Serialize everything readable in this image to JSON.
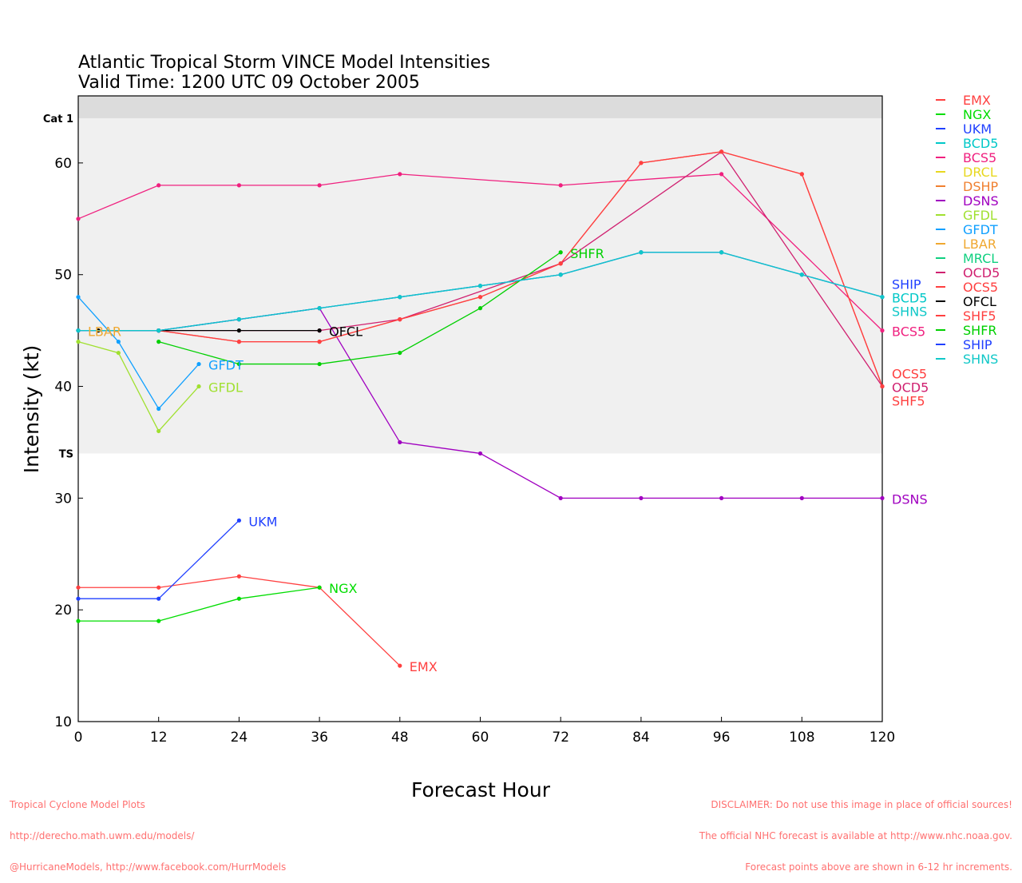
{
  "title_line1": "Atlantic Tropical Storm VINCE Model Intensities",
  "title_line2": "Valid Time: 1200 UTC 09 October 2005",
  "footer_left": [
    "Tropical Cyclone Model Plots",
    "http://derecho.math.uwm.edu/models/",
    "@HurricaneModels, http://www.facebook.com/HurrModels"
  ],
  "footer_right": [
    "DISCLAIMER: Do not use this image in place of official sources!",
    "The official NHC forecast is available at http://www.nhc.noaa.gov.",
    "Forecast points above are shown in 6-12 hr increments."
  ],
  "chart_data": {
    "type": "line",
    "xlabel": "Forecast Hour",
    "ylabel": "Intensity (kt)",
    "xlim": [
      0,
      120
    ],
    "ylim": [
      10,
      66
    ],
    "xticks": [
      0,
      12,
      24,
      36,
      48,
      60,
      72,
      84,
      96,
      108,
      120
    ],
    "yticks": [
      10,
      20,
      30,
      40,
      50,
      60
    ],
    "bands": [
      {
        "label": "TS",
        "from": 34,
        "to": 64,
        "color": "#f0f0f0"
      },
      {
        "label": "Cat 1",
        "from": 64,
        "to": 66,
        "color": "#dcdcdc"
      }
    ],
    "legend_position": "right",
    "series": [
      {
        "name": "EMX",
        "color": "#ff4040",
        "x": [
          0,
          12,
          24,
          36,
          48
        ],
        "y": [
          22,
          22,
          23,
          22,
          15
        ]
      },
      {
        "name": "NGX",
        "color": "#00dd00",
        "x": [
          0,
          12,
          24,
          36
        ],
        "y": [
          19,
          19,
          21,
          22
        ]
      },
      {
        "name": "UKM",
        "color": "#2040ff",
        "x": [
          0,
          12,
          24
        ],
        "y": [
          21,
          21,
          28
        ]
      },
      {
        "name": "BCD5",
        "color": "#00c8c8",
        "x": [
          0,
          12,
          24,
          36,
          48,
          60,
          72,
          84,
          96,
          108,
          120
        ],
        "y": [
          45,
          45,
          46,
          47,
          48,
          49,
          50,
          52,
          52,
          50,
          48
        ]
      },
      {
        "name": "BCS5",
        "color": "#f0207f",
        "x": [
          0,
          12,
          24,
          36,
          48,
          72,
          96,
          120
        ],
        "y": [
          55,
          58,
          58,
          58,
          59,
          58,
          59,
          45
        ]
      },
      {
        "name": "DRCL",
        "color": "#e8d820",
        "x": [],
        "y": []
      },
      {
        "name": "DSHP",
        "color": "#f08030",
        "x": [],
        "y": []
      },
      {
        "name": "DSNS",
        "color": "#a000c0",
        "x": [
          0,
          12,
          24,
          36,
          48,
          60,
          72,
          84,
          96,
          108,
          120
        ],
        "y": [
          45,
          45,
          46,
          47,
          35,
          34,
          30,
          30,
          30,
          30,
          30
        ]
      },
      {
        "name": "GFDL",
        "color": "#a0e030",
        "x": [
          0,
          6,
          12,
          18
        ],
        "y": [
          44,
          43,
          36,
          40
        ]
      },
      {
        "name": "GFDT",
        "color": "#10a0ff",
        "x": [
          0,
          6,
          12,
          18
        ],
        "y": [
          48,
          44,
          38,
          42
        ]
      },
      {
        "name": "LBAR",
        "color": "#f0a830",
        "x": [
          0
        ],
        "y": [
          45
        ]
      },
      {
        "name": "MRCL",
        "color": "#10d080",
        "x": [],
        "y": []
      },
      {
        "name": "OCD5",
        "color": "#d02070",
        "x": [
          12,
          36,
          48,
          72,
          96,
          120
        ],
        "y": [
          45,
          45,
          46,
          51,
          61,
          40
        ]
      },
      {
        "name": "OCS5",
        "color": "#ff4040",
        "x": [
          12,
          24,
          36,
          48,
          60,
          72,
          84,
          96,
          108,
          120
        ],
        "y": [
          45,
          44,
          44,
          46,
          48,
          51,
          60,
          61,
          59,
          40
        ]
      },
      {
        "name": "OFCL",
        "color": "#000000",
        "x": [
          3,
          12,
          24,
          36
        ],
        "y": [
          45,
          45,
          45,
          45
        ]
      },
      {
        "name": "SHF5",
        "color": "#ff4040",
        "x": [
          12,
          24,
          36,
          48,
          60,
          72,
          84,
          96,
          108,
          120
        ],
        "y": [
          45,
          44,
          44,
          46,
          48,
          51,
          60,
          61,
          59,
          40
        ]
      },
      {
        "name": "SHFR",
        "color": "#00d000",
        "x": [
          12,
          24,
          36,
          48,
          60,
          72
        ],
        "y": [
          44,
          42,
          42,
          43,
          47,
          52
        ]
      },
      {
        "name": "SHIP",
        "color": "#2040ff",
        "x": [
          0,
          12,
          24,
          36,
          48,
          60,
          72,
          84,
          96,
          108,
          120
        ],
        "y": [
          45,
          45,
          46,
          47,
          48,
          49,
          50,
          52,
          52,
          50,
          48
        ]
      },
      {
        "name": "SHNS",
        "color": "#10c8c8",
        "x": [
          0,
          12,
          24,
          36,
          48,
          60,
          72,
          84,
          96,
          108,
          120
        ],
        "y": [
          45,
          45,
          46,
          47,
          48,
          49,
          50,
          52,
          52,
          50,
          48
        ]
      }
    ]
  }
}
